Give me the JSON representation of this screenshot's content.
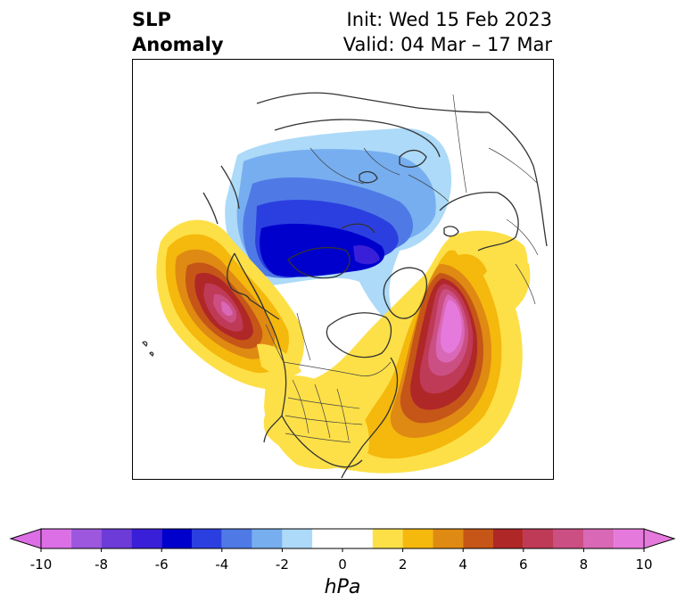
{
  "title": {
    "left_line1": "SLP",
    "left_line2": "Anomaly",
    "init": "Init: Wed 15 Feb 2023",
    "valid": "Valid: 04 Mar – 17 Mar"
  },
  "colorbar": {
    "unit": "hPa",
    "tick_labels": [
      "-10",
      "-8",
      "-6",
      "-4",
      "-2",
      "0",
      "2",
      "4",
      "6",
      "8",
      "10"
    ],
    "levels": [
      -10,
      -9,
      -8,
      -7,
      -6,
      -5,
      -4,
      -3,
      -2,
      -1,
      1,
      2,
      3,
      4,
      5,
      6,
      7,
      8,
      9,
      10
    ],
    "colors": [
      "#dd6fe6",
      "#9d57de",
      "#6c3bd8",
      "#3a1fd8",
      "#0000cc",
      "#2b3fe0",
      "#4f7ae6",
      "#76aef0",
      "#acdaf8",
      "#ffffff",
      "#fde047",
      "#f5b80c",
      "#df8a12",
      "#c65518",
      "#b02727",
      "#be3a56",
      "#cc4f83",
      "#d968b6",
      "#e679dc"
    ],
    "extend": "both"
  },
  "map": {
    "projection": "polar-stereographic",
    "features": {
      "negative_anomaly": "Arctic / northern Canada, Greenland and Siberia (min about -7 hPa)",
      "positive_anomaly_pacific": "Gulf of Alaska (max about 7 hPa)",
      "positive_anomaly_atlantic": "North Atlantic east of Newfoundland (max about 9 hPa)"
    }
  }
}
